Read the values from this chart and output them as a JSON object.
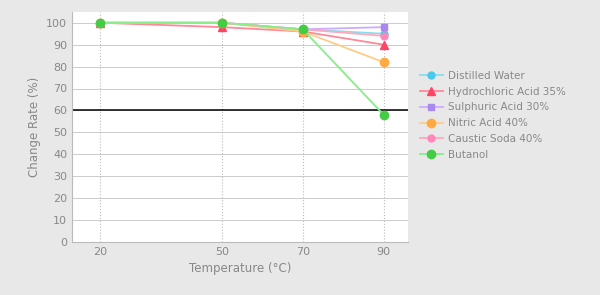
{
  "xlabel": "Temperature (°C)",
  "ylabel": "Change Rate (%)",
  "x_values": [
    20,
    50,
    70,
    90
  ],
  "series": [
    {
      "label": "Distilled Water",
      "color": "#44ccee",
      "line_color": "#88ddee",
      "marker": "o",
      "markersize": 5,
      "values": [
        100,
        100,
        97,
        95
      ]
    },
    {
      "label": "Hydrochloric Acid 35%",
      "color": "#ff4466",
      "line_color": "#ff8899",
      "marker": "^",
      "markersize": 6,
      "values": [
        100,
        98,
        96,
        90
      ]
    },
    {
      "label": "Sulphuric Acid 30%",
      "color": "#aa88ee",
      "line_color": "#ccaaff",
      "marker": "s",
      "markersize": 5,
      "values": [
        100,
        100,
        97,
        98
      ]
    },
    {
      "label": "Nitric Acid 40%",
      "color": "#ffaa44",
      "line_color": "#ffcc88",
      "marker": "o",
      "markersize": 6,
      "values": [
        100,
        100,
        96,
        82
      ]
    },
    {
      "label": "Caustic Soda 40%",
      "color": "#ff88bb",
      "line_color": "#ffaabb",
      "marker": "o",
      "markersize": 5,
      "values": [
        100,
        100,
        97,
        94
      ]
    },
    {
      "label": "Butanol",
      "color": "#44cc44",
      "line_color": "#88ee88",
      "marker": "o",
      "markersize": 6,
      "values": [
        100,
        100,
        97,
        58
      ]
    }
  ],
  "ylim": [
    0,
    105
  ],
  "yticks": [
    0,
    10,
    20,
    30,
    40,
    50,
    60,
    70,
    80,
    90,
    100
  ],
  "xticks": [
    20,
    50,
    70,
    90
  ],
  "xlim": [
    13,
    96
  ],
  "background_color": "#e8e8e8",
  "plot_bg_color": "#ffffff",
  "grid_color": "#cccccc",
  "hline_y": 60,
  "hline_color": "#000000",
  "legend_fontsize": 7.5,
  "axis_fontsize": 8.5,
  "tick_fontsize": 8,
  "label_color": "#888888"
}
